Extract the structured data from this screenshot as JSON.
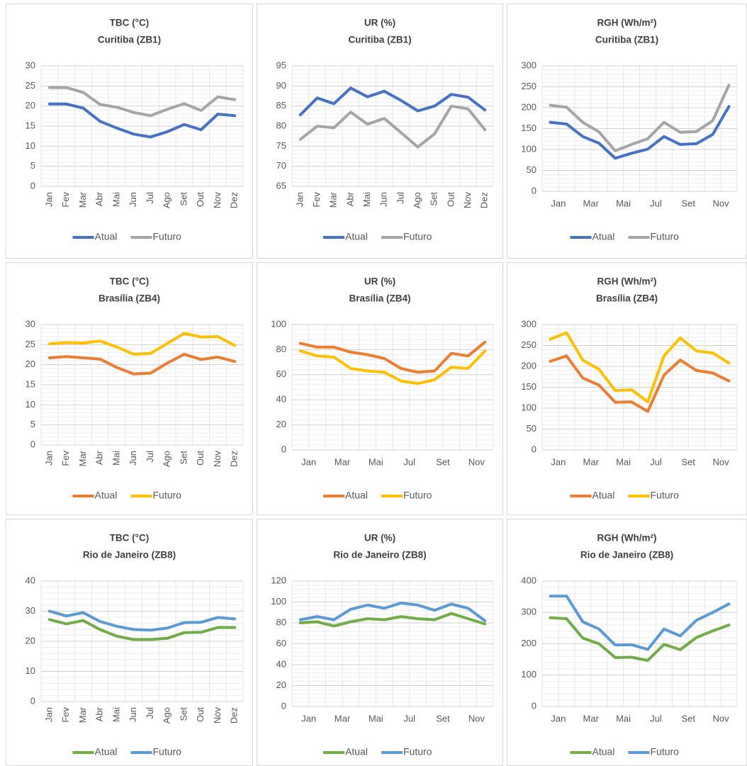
{
  "chart_data": [
    {
      "type": "line",
      "title": "TBC (°C)",
      "subtitle": "Curitiba (ZB1)",
      "categories": [
        "Jan",
        "Fev",
        "Mar",
        "Abr",
        "Mai",
        "Jun",
        "Jul",
        "Ago",
        "Set",
        "Out",
        "Nov",
        "Dez"
      ],
      "ylim": [
        0,
        30
      ],
      "yticks": [
        0,
        5,
        10,
        15,
        20,
        25,
        30
      ],
      "grid": true,
      "series": [
        {
          "name": "Atual",
          "color": "#4472c4",
          "values": [
            20.5,
            20.5,
            19.5,
            16.2,
            14.5,
            13,
            12.3,
            13.6,
            15.4,
            14.1,
            18,
            17.6
          ]
        },
        {
          "name": "Futuro",
          "color": "#a5a5a5",
          "values": [
            24.6,
            24.6,
            23.4,
            20.4,
            19.7,
            18.4,
            17.6,
            19.2,
            20.6,
            18.9,
            22.3,
            21.6
          ]
        }
      ]
    },
    {
      "type": "line",
      "title": "UR (%)",
      "subtitle": "Curitiba (ZB1)",
      "categories": [
        "Jan",
        "Fev",
        "Mar",
        "Abr",
        "Mai",
        "Jun",
        "Jul",
        "Ago",
        "Set",
        "Out",
        "Nov",
        "Dez"
      ],
      "ylim": [
        65,
        95
      ],
      "yticks": [
        65,
        70,
        75,
        80,
        85,
        90,
        95
      ],
      "grid": true,
      "series": [
        {
          "name": "Atual",
          "color": "#4472c4",
          "values": [
            82.8,
            87,
            85.6,
            89.5,
            87.3,
            88.7,
            86.4,
            83.8,
            85,
            87.9,
            87.2,
            84
          ]
        },
        {
          "name": "Futuro",
          "color": "#a5a5a5",
          "values": [
            76.7,
            80,
            79.6,
            83.5,
            80.5,
            81.9,
            78.4,
            74.8,
            78.1,
            85,
            84.3,
            79.1
          ]
        }
      ]
    },
    {
      "type": "line",
      "title": "RGH (Wh/m²)",
      "subtitle": "Curitiba (ZB1)",
      "categories": [
        "Jan",
        null,
        "Mar",
        null,
        "Mai",
        null,
        "Jul",
        null,
        "Set",
        null,
        "Nov",
        null
      ],
      "ylim": [
        0,
        300
      ],
      "yticks": [
        0,
        50,
        100,
        150,
        200,
        250,
        300
      ],
      "grid": true,
      "series": [
        {
          "name": "Atual",
          "color": "#4472c4",
          "values": [
            165,
            161,
            131,
            115,
            79,
            91,
            101,
            131,
            112,
            114,
            136,
            203
          ]
        },
        {
          "name": "Futuro",
          "color": "#a5a5a5",
          "values": [
            206,
            201,
            165,
            142,
            97,
            112,
            126,
            165,
            141,
            143,
            169,
            254
          ]
        }
      ]
    },
    {
      "type": "line",
      "title": "TBC (°C)",
      "subtitle": "Brasília (ZB4)",
      "categories": [
        "Jan",
        "Fev",
        "Mar",
        "Abr",
        "Mai",
        "Jun",
        "Jul",
        "Ago",
        "Set",
        "Out",
        "Nov",
        "Dez"
      ],
      "ylim": [
        0,
        30
      ],
      "yticks": [
        0,
        5,
        10,
        15,
        20,
        25,
        30
      ],
      "grid": true,
      "series": [
        {
          "name": "Atual",
          "color": "#ed7d31",
          "values": [
            21.7,
            22,
            21.7,
            21.4,
            19.3,
            17.7,
            17.9,
            20.4,
            22.6,
            21.3,
            21.9,
            20.8
          ]
        },
        {
          "name": "Futuro",
          "color": "#ffc000",
          "values": [
            25.2,
            25.5,
            25.4,
            25.9,
            24.4,
            22.6,
            22.8,
            25.3,
            27.8,
            26.9,
            27,
            24.8
          ]
        }
      ]
    },
    {
      "type": "line",
      "title": "UR (%)",
      "subtitle": "Brasília (ZB4)",
      "categories": [
        "Jan",
        null,
        "Mar",
        null,
        "Mai",
        null,
        "Jul",
        null,
        "Set",
        null,
        "Nov",
        null
      ],
      "ylim": [
        0,
        100
      ],
      "yticks": [
        0,
        20,
        40,
        60,
        80,
        100
      ],
      "grid": true,
      "series": [
        {
          "name": "Atual",
          "color": "#ed7d31",
          "values": [
            85,
            82,
            82,
            78,
            76,
            73,
            65,
            62,
            63,
            77,
            75,
            86
          ]
        },
        {
          "name": "Futuro",
          "color": "#ffc000",
          "values": [
            79,
            75,
            74,
            65,
            63,
            62,
            55,
            53,
            56,
            66,
            65,
            79
          ]
        }
      ]
    },
    {
      "type": "line",
      "title": "RGH (Wh/m²)",
      "subtitle": "Brasília (ZB4)",
      "categories": [
        "Jan",
        null,
        "Mar",
        null,
        "Mai",
        null,
        "Jul",
        null,
        "Set",
        null,
        "Nov",
        null
      ],
      "ylim": [
        0,
        300
      ],
      "yticks": [
        0,
        50,
        100,
        150,
        200,
        250,
        300
      ],
      "grid": true,
      "series": [
        {
          "name": "Atual",
          "color": "#ed7d31",
          "values": [
            212,
            225,
            172,
            155,
            114,
            115,
            92,
            179,
            215,
            190,
            184,
            165
          ]
        },
        {
          "name": "Futuro",
          "color": "#ffc000",
          "values": [
            265,
            280,
            215,
            193,
            142,
            144,
            115,
            225,
            268,
            237,
            232,
            208
          ]
        }
      ]
    },
    {
      "type": "line",
      "title": "TBC (°C)",
      "subtitle": "Rio de Janeiro (ZB8)",
      "categories": [
        "Jan",
        "Fev",
        "Mar",
        "Abr",
        "Mai",
        "Jun",
        "Jul",
        "Ago",
        "Set",
        "Out",
        "Nov",
        "Dez"
      ],
      "ylim": [
        0,
        40
      ],
      "yticks": [
        0,
        10,
        20,
        30,
        40
      ],
      "grid": true,
      "series": [
        {
          "name": "Atual",
          "color": "#70ad47",
          "values": [
            27.2,
            25.8,
            26.9,
            23.9,
            21.7,
            20.6,
            20.6,
            21,
            22.9,
            23,
            24.6,
            24.6
          ]
        },
        {
          "name": "Futuro",
          "color": "#5b9bd5",
          "values": [
            30,
            28.4,
            29.5,
            26.6,
            25,
            23.9,
            23.7,
            24.4,
            26.2,
            26.3,
            27.9,
            27.4
          ]
        }
      ]
    },
    {
      "type": "line",
      "title": "UR (%)",
      "subtitle": "Rio de Janeiro (ZB8)",
      "categories": [
        "Jan",
        null,
        "Mar",
        null,
        "Mai",
        null,
        "Jul",
        null,
        "Set",
        null,
        "Nov",
        null
      ],
      "ylim": [
        0,
        120
      ],
      "yticks": [
        0,
        20,
        40,
        60,
        80,
        100,
        120
      ],
      "grid": true,
      "series": [
        {
          "name": "Atual",
          "color": "#70ad47",
          "values": [
            80,
            81,
            77,
            81,
            84,
            83,
            86,
            84,
            83,
            89,
            84,
            79
          ]
        },
        {
          "name": "Futuro",
          "color": "#5b9bd5",
          "values": [
            83,
            86,
            83,
            93,
            97,
            94,
            99,
            97,
            92,
            98,
            94,
            82
          ]
        }
      ]
    },
    {
      "type": "line",
      "title": "RGH (Wh/m²)",
      "subtitle": "Rio de Janeiro (ZB8)",
      "categories": [
        "Jan",
        null,
        "Mar",
        null,
        "Mai",
        null,
        "Jul",
        null,
        "Set",
        null,
        "Nov",
        null
      ],
      "ylim": [
        0,
        400
      ],
      "yticks": [
        0,
        100,
        200,
        300,
        400
      ],
      "grid": true,
      "series": [
        {
          "name": "Atual",
          "color": "#70ad47",
          "values": [
            283,
            280,
            218,
            200,
            156,
            157,
            147,
            198,
            181,
            220,
            241,
            260
          ]
        },
        {
          "name": "Futuro",
          "color": "#5b9bd5",
          "values": [
            352,
            352,
            270,
            247,
            196,
            197,
            182,
            247,
            225,
            275,
            300,
            327
          ]
        }
      ]
    }
  ]
}
